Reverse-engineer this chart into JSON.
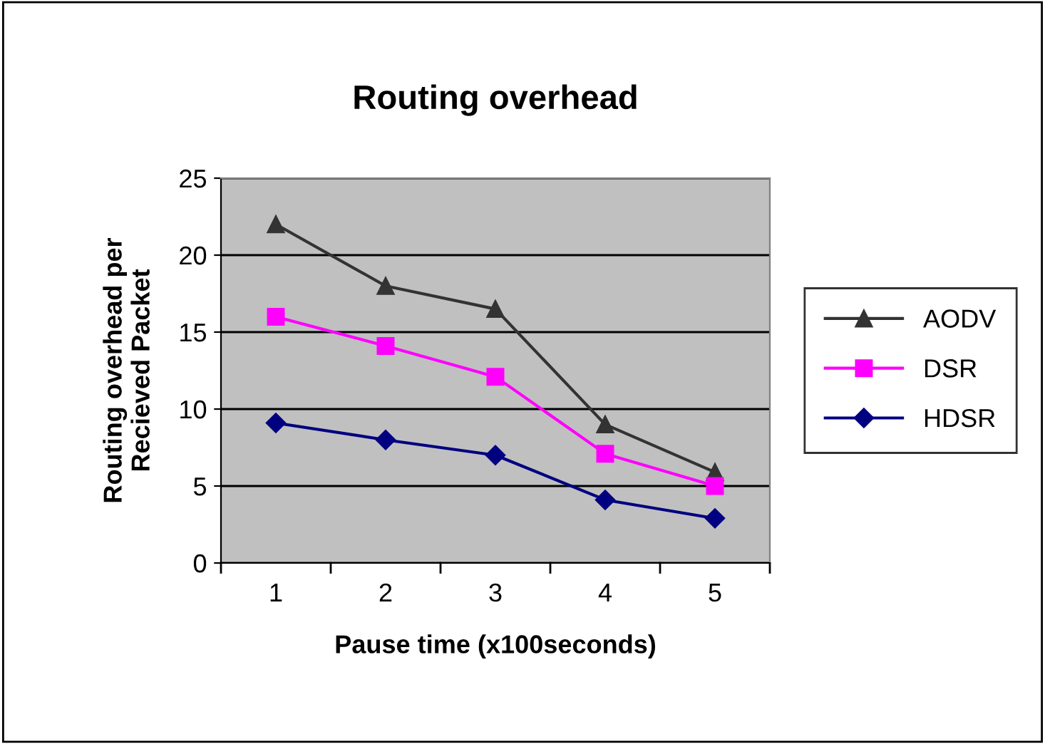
{
  "chart_data": {
    "type": "line",
    "title": "Routing overhead",
    "xlabel": "Pause time (x100seconds)",
    "ylabel": "Routing overhead per\nRecieved Packet",
    "categories": [
      "1",
      "2",
      "3",
      "4",
      "5"
    ],
    "series": [
      {
        "name": "AODV",
        "color": "#333333",
        "marker": "triangle",
        "values": [
          22,
          18,
          16.5,
          9,
          5.9
        ]
      },
      {
        "name": "DSR",
        "color": "#ff00ff",
        "marker": "square",
        "values": [
          16,
          14.1,
          12.1,
          7.1,
          5
        ]
      },
      {
        "name": "HDSR",
        "color": "#000080",
        "marker": "diamond",
        "values": [
          9.1,
          8,
          7,
          4.1,
          2.9
        ]
      }
    ],
    "ylim": [
      0,
      25
    ],
    "yticks": [
      0,
      5,
      10,
      15,
      20,
      25
    ],
    "grid": "y",
    "legend": "right",
    "line_style": "solid"
  }
}
